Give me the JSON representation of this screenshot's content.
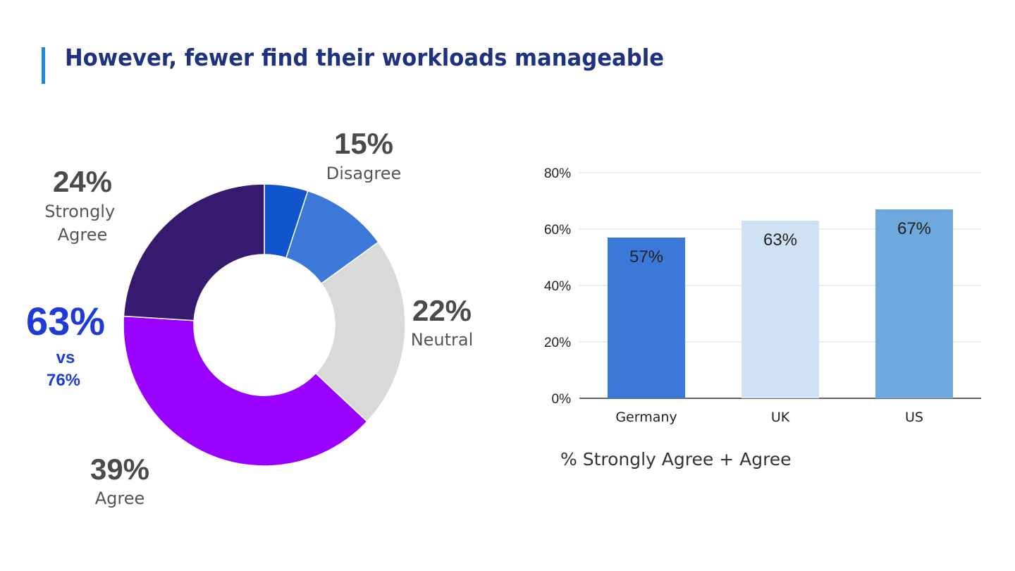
{
  "title": "However, fewer find their workloads manageable",
  "chart_data": [
    {
      "type": "pie",
      "donut": true,
      "slices": [
        {
          "label": "Strongly Agree",
          "value_label": "24%",
          "value": 24,
          "color": "#361a70"
        },
        {
          "label": "Agree",
          "value_label": "39%",
          "value": 39,
          "color": "#9900ff"
        },
        {
          "label": "Neutral",
          "value_label": "22%",
          "value": 22,
          "color": "#d9d9d9"
        },
        {
          "label": "Disagree",
          "value_label": "15%",
          "value": 15,
          "color": "#3c78d8"
        }
      ],
      "sub_segments_of_disagree": [
        {
          "value": 5,
          "color": "#1155cc"
        },
        {
          "value": 10,
          "color": "#3c78d8"
        }
      ],
      "comparison": {
        "big": "63%",
        "vs": "vs",
        "other": "76%"
      }
    },
    {
      "type": "bar",
      "categories": [
        "Germany",
        "UK",
        "US"
      ],
      "values": [
        57,
        63,
        67
      ],
      "value_labels": [
        "57%",
        "63%",
        "67%"
      ],
      "colors": [
        "#3c78d8",
        "#cfe2f3",
        "#6fa8dc"
      ],
      "yticks": [
        "0%",
        "20%",
        "40%",
        "60%",
        "80%"
      ],
      "ylim": [
        0,
        80
      ],
      "grid": true,
      "caption": "% Strongly Agree + Agree"
    }
  ]
}
